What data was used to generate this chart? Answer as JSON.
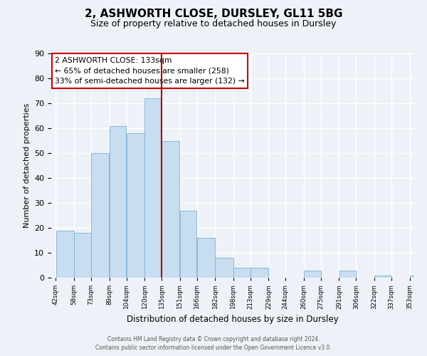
{
  "title": "2, ASHWORTH CLOSE, DURSLEY, GL11 5BG",
  "subtitle": "Size of property relative to detached houses in Dursley",
  "xlabel": "Distribution of detached houses by size in Dursley",
  "ylabel": "Number of detached properties",
  "bar_color": "#c8ddf0",
  "bar_edge_color": "#7ab3d8",
  "background_color": "#eef2f8",
  "grid_color": "#ffffff",
  "vline_color": "#aa0000",
  "vline_x": 135,
  "annotation_title": "2 ASHWORTH CLOSE: 133sqm",
  "annotation_line1": "← 65% of detached houses are smaller (258)",
  "annotation_line2": "33% of semi-detached houses are larger (132) →",
  "annotation_box_color": "#ffffff",
  "annotation_box_edge_color": "#cc0000",
  "bins": [
    42,
    58,
    73,
    89,
    104,
    120,
    135,
    151,
    166,
    182,
    198,
    213,
    229,
    244,
    260,
    275,
    291,
    306,
    322,
    337,
    353
  ],
  "counts": [
    19,
    18,
    50,
    61,
    58,
    72,
    55,
    27,
    16,
    8,
    4,
    4,
    0,
    0,
    3,
    0,
    3,
    0,
    1,
    0,
    1
  ],
  "ylim": [
    0,
    90
  ],
  "yticks": [
    0,
    10,
    20,
    30,
    40,
    50,
    60,
    70,
    80,
    90
  ],
  "footer_line1": "Contains HM Land Registry data © Crown copyright and database right 2024.",
  "footer_line2": "Contains public sector information licensed under the Open Government Licence v3.0."
}
